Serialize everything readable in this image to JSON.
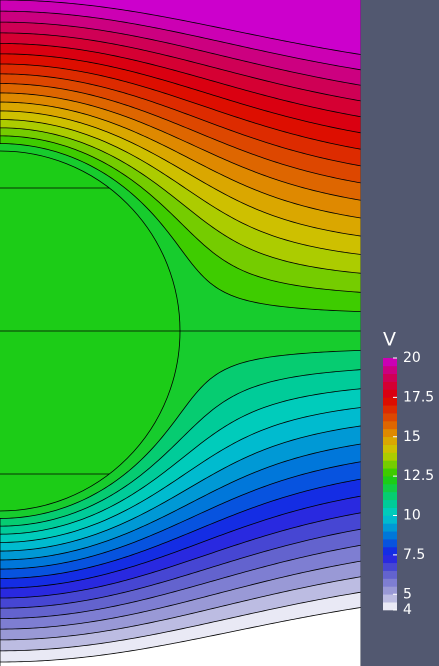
{
  "chart_data": {
    "type": "contour",
    "colorbar_title": "V",
    "clim": [
      4,
      20
    ],
    "ticks": [
      4,
      5,
      7.5,
      10,
      12.5,
      15,
      17.5,
      20
    ],
    "levels": [
      4,
      4.5,
      5,
      5.5,
      6,
      6.5,
      7,
      7.5,
      8,
      8.5,
      9,
      9.5,
      10,
      10.5,
      11,
      11.5,
      12,
      12.5,
      13,
      13.5,
      14,
      14.5,
      15,
      15.5,
      16,
      16.5,
      17,
      17.5,
      18,
      18.5,
      19,
      19.5,
      20
    ],
    "colormap": [
      {
        "value": 4,
        "color": "#ffffff"
      },
      {
        "value": 5,
        "color": "#a6a6d8"
      },
      {
        "value": 6.5,
        "color": "#5555cc"
      },
      {
        "value": 7.5,
        "color": "#1a1ae6"
      },
      {
        "value": 8.5,
        "color": "#0066dd"
      },
      {
        "value": 10,
        "color": "#00cccc"
      },
      {
        "value": 11,
        "color": "#00cc88"
      },
      {
        "value": 12.5,
        "color": "#22cc00"
      },
      {
        "value": 14,
        "color": "#c8cc00"
      },
      {
        "value": 15,
        "color": "#e09a00"
      },
      {
        "value": 16,
        "color": "#dd5500"
      },
      {
        "value": 17.5,
        "color": "#dd0000"
      },
      {
        "value": 19,
        "color": "#cc0066"
      },
      {
        "value": 20,
        "color": "#cc00cc"
      }
    ]
  }
}
